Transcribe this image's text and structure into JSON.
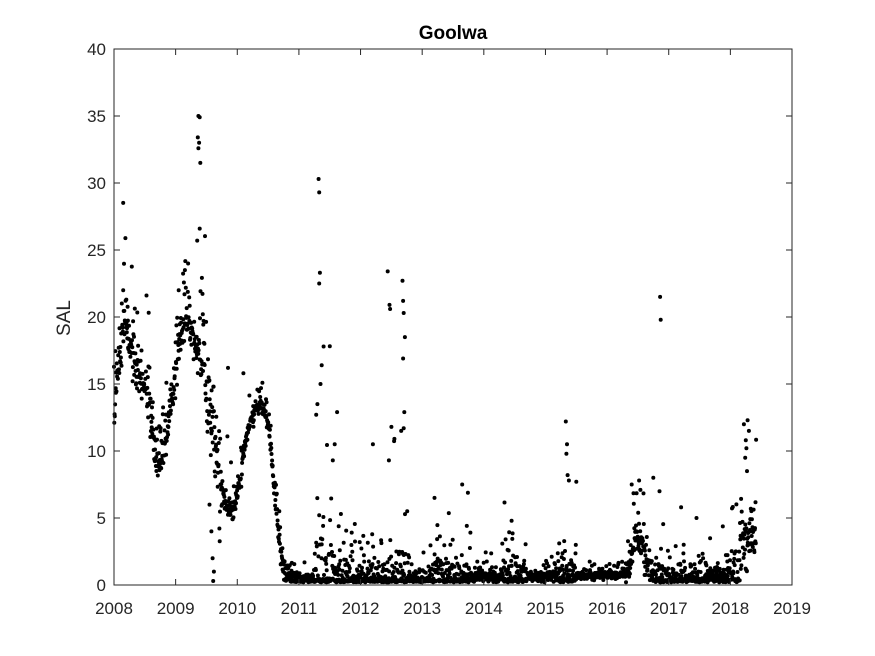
{
  "colors": {
    "marker": "#000000",
    "axis": "#262626",
    "background": "#ffffff"
  },
  "chart_data": {
    "type": "scatter",
    "title": "Goolwa",
    "xlabel": "",
    "ylabel": "SAL",
    "xlim": [
      2008,
      2019
    ],
    "ylim": [
      0,
      40
    ],
    "xticks": [
      "2008",
      "2009",
      "2010",
      "2011",
      "2012",
      "2013",
      "2014",
      "2015",
      "2016",
      "2017",
      "2018",
      "2019"
    ],
    "yticks": [
      "0",
      "5",
      "10",
      "15",
      "20",
      "25",
      "30",
      "35",
      "40"
    ],
    "grid": false,
    "legend": "none",
    "series": [
      {
        "marker": "dot",
        "color": "#000000",
        "curve": [
          [
            2008.0,
            12
          ],
          [
            2008.05,
            16
          ],
          [
            2008.1,
            18
          ],
          [
            2008.15,
            19
          ],
          [
            2008.2,
            19.5
          ],
          [
            2008.25,
            18.5
          ],
          [
            2008.3,
            17
          ],
          [
            2008.38,
            16
          ],
          [
            2008.45,
            15
          ],
          [
            2008.55,
            13.5
          ],
          [
            2008.62,
            12
          ],
          [
            2008.68,
            10
          ],
          [
            2008.72,
            9
          ],
          [
            2008.78,
            9.5
          ],
          [
            2008.85,
            11
          ],
          [
            2008.92,
            13
          ],
          [
            2009.0,
            16
          ],
          [
            2009.06,
            18
          ],
          [
            2009.12,
            19.5
          ],
          [
            2009.18,
            20
          ],
          [
            2009.25,
            19
          ],
          [
            2009.32,
            18
          ],
          [
            2009.4,
            17
          ],
          [
            2009.45,
            16.5
          ],
          [
            2009.5,
            15
          ],
          [
            2009.55,
            13
          ],
          [
            2009.6,
            12
          ],
          [
            2009.65,
            10
          ],
          [
            2009.7,
            8.5
          ],
          [
            2009.74,
            7.5
          ],
          [
            2009.78,
            6.5
          ],
          [
            2009.82,
            6
          ],
          [
            2009.86,
            5.5
          ],
          [
            2009.92,
            5.6
          ],
          [
            2009.98,
            6.2
          ],
          [
            2010.05,
            8
          ],
          [
            2010.12,
            10.5
          ],
          [
            2010.2,
            12
          ],
          [
            2010.28,
            13
          ],
          [
            2010.36,
            13.5
          ],
          [
            2010.44,
            13
          ],
          [
            2010.5,
            12
          ],
          [
            2010.55,
            10
          ],
          [
            2010.6,
            7
          ],
          [
            2010.64,
            5
          ],
          [
            2010.68,
            3
          ],
          [
            2010.72,
            1.8
          ],
          [
            2010.78,
            1
          ],
          [
            2010.85,
            0.6
          ],
          [
            2010.95,
            0.5
          ],
          [
            2011.1,
            0.4
          ],
          [
            2011.3,
            0.5
          ],
          [
            2011.4,
            0.6
          ],
          [
            2011.5,
            0.5
          ],
          [
            2011.7,
            0.4
          ],
          [
            2012.0,
            0.4
          ],
          [
            2012.5,
            0.4
          ],
          [
            2012.75,
            0.45
          ],
          [
            2013.0,
            0.45
          ],
          [
            2013.5,
            0.55
          ],
          [
            2014.0,
            0.6
          ],
          [
            2014.5,
            0.6
          ],
          [
            2015.0,
            0.6
          ],
          [
            2015.5,
            0.65
          ],
          [
            2016.0,
            0.75
          ],
          [
            2016.3,
            0.8
          ],
          [
            2016.4,
            2.5
          ],
          [
            2016.45,
            3.2
          ],
          [
            2016.5,
            3.5
          ],
          [
            2016.55,
            3.2
          ],
          [
            2016.6,
            2.5
          ],
          [
            2016.7,
            1
          ],
          [
            2016.8,
            0.5
          ],
          [
            2017.0,
            0.4
          ],
          [
            2017.5,
            0.5
          ],
          [
            2018.0,
            0.55
          ],
          [
            2018.1,
            0.8
          ],
          [
            2018.2,
            2.5
          ],
          [
            2018.3,
            3.5
          ],
          [
            2018.38,
            3.5
          ],
          [
            2018.42,
            3
          ]
        ],
        "bursts": [
          [
            2008.0,
            2008.7,
            2.2,
            0.7
          ],
          [
            2008.7,
            2009.0,
            1.5,
            0.5
          ],
          [
            2009.0,
            2009.4,
            1.5,
            0.5
          ],
          [
            2009.4,
            2009.75,
            3.5,
            1.0
          ],
          [
            2009.75,
            2010.0,
            1.0,
            0.6
          ],
          [
            2010.0,
            2010.6,
            0.6,
            0.8
          ],
          [
            2010.6,
            2010.9,
            1.0,
            0.5
          ],
          [
            2010.9,
            2011.25,
            0.4,
            0.3
          ],
          [
            2011.25,
            2011.55,
            4.0,
            1.2
          ],
          [
            2011.55,
            2012.1,
            1.5,
            0.5
          ],
          [
            2012.1,
            2012.4,
            1.2,
            0.5
          ],
          [
            2012.4,
            2012.8,
            3.0,
            1.0
          ],
          [
            2012.8,
            2013.1,
            0.5,
            0.3
          ],
          [
            2013.1,
            2013.8,
            1.5,
            0.6
          ],
          [
            2013.8,
            2014.3,
            0.5,
            0.3
          ],
          [
            2014.3,
            2014.7,
            1.5,
            0.6
          ],
          [
            2014.7,
            2015.2,
            0.4,
            0.3
          ],
          [
            2015.2,
            2015.5,
            1.3,
            0.6
          ],
          [
            2015.5,
            2016.3,
            0.3,
            0.3
          ],
          [
            2016.3,
            2016.65,
            1.5,
            0.6
          ],
          [
            2016.65,
            2017.0,
            1.2,
            0.5
          ],
          [
            2017.0,
            2017.5,
            1.0,
            0.5
          ],
          [
            2017.5,
            2018.0,
            0.8,
            0.5
          ],
          [
            2018.0,
            2018.42,
            2.0,
            0.8
          ]
        ],
        "outliers": [
          [
            2009.37,
            35
          ],
          [
            2009.39,
            34.9
          ],
          [
            2009.36,
            33.4
          ],
          [
            2009.38,
            33
          ],
          [
            2009.37,
            32.6
          ],
          [
            2009.4,
            31.5
          ],
          [
            2009.39,
            26.6
          ],
          [
            2009.35,
            25.7
          ],
          [
            2009.15,
            23.5
          ],
          [
            2009.05,
            22
          ],
          [
            2008.15,
            22
          ],
          [
            2008.2,
            21.3
          ],
          [
            2009.55,
            6
          ],
          [
            2009.58,
            4
          ],
          [
            2009.6,
            2
          ],
          [
            2009.62,
            1
          ],
          [
            2009.61,
            0.3
          ],
          [
            2010.1,
            15.8
          ],
          [
            2009.85,
            16.2
          ],
          [
            2011.32,
            30.3
          ],
          [
            2011.33,
            29.3
          ],
          [
            2011.34,
            23.3
          ],
          [
            2011.33,
            22.5
          ],
          [
            2011.4,
            17.8
          ],
          [
            2011.37,
            16.4
          ],
          [
            2011.35,
            15
          ],
          [
            2011.3,
            13.5
          ],
          [
            2011.28,
            12.7
          ],
          [
            2011.62,
            12.9
          ],
          [
            2011.58,
            10.5
          ],
          [
            2011.55,
            9.3
          ],
          [
            2012.44,
            23.4
          ],
          [
            2012.47,
            20.9
          ],
          [
            2012.48,
            20.6
          ],
          [
            2012.68,
            22.7
          ],
          [
            2012.69,
            21.2
          ],
          [
            2012.7,
            20.3
          ],
          [
            2012.72,
            18.5
          ],
          [
            2012.69,
            16.9
          ],
          [
            2012.71,
            12.9
          ],
          [
            2012.7,
            11.7
          ],
          [
            2012.66,
            11.5
          ],
          [
            2012.5,
            11.8
          ],
          [
            2012.55,
            10.9
          ],
          [
            2012.46,
            9.3
          ],
          [
            2012.2,
            10.5
          ],
          [
            2013.65,
            7.5
          ],
          [
            2013.2,
            6.5
          ],
          [
            2014.45,
            4.8
          ],
          [
            2015.33,
            12.2
          ],
          [
            2015.35,
            10.5
          ],
          [
            2015.34,
            9.8
          ],
          [
            2015.36,
            8.2
          ],
          [
            2015.38,
            7.8
          ],
          [
            2015.5,
            7.7
          ],
          [
            2016.4,
            7.5
          ],
          [
            2016.52,
            7.8
          ],
          [
            2016.75,
            8
          ],
          [
            2016.86,
            21.5
          ],
          [
            2016.87,
            19.8
          ],
          [
            2016.85,
            7
          ],
          [
            2017.2,
            5.8
          ],
          [
            2017.45,
            5
          ],
          [
            2018.22,
            12
          ],
          [
            2018.25,
            10.8
          ],
          [
            2018.28,
            12.3
          ],
          [
            2018.3,
            11.5
          ],
          [
            2018.26,
            10.2
          ],
          [
            2018.24,
            9.5
          ],
          [
            2018.27,
            8.5
          ]
        ]
      }
    ]
  }
}
